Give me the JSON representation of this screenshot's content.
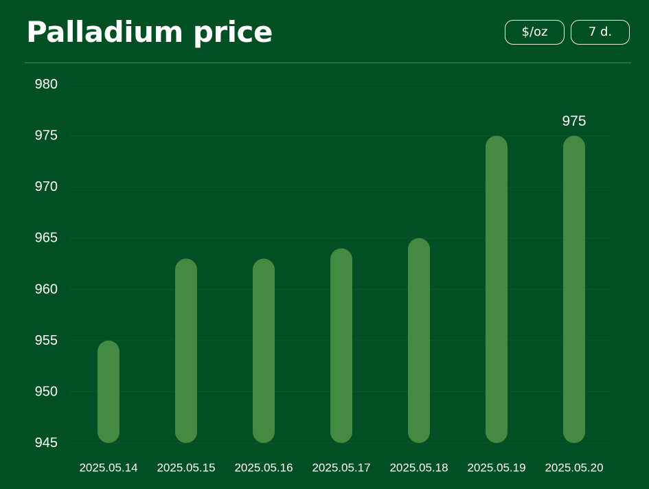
{
  "header": {
    "title": "Palladium price",
    "unit_label": "$/oz",
    "range_label": "7 d."
  },
  "colors": {
    "background": "#024f24",
    "bar": "#448a42",
    "gridline": "#0d5a2c",
    "text": "#ffffff"
  },
  "chart_data": {
    "type": "bar",
    "title": "Palladium price",
    "xlabel": "",
    "ylabel": "",
    "categories": [
      "2025.05.14",
      "2025.05.15",
      "2025.05.16",
      "2025.05.17",
      "2025.05.18",
      "2025.05.19",
      "2025.05.20"
    ],
    "values": [
      955,
      963,
      963,
      964,
      965,
      975,
      975
    ],
    "ylim": [
      945,
      980
    ],
    "yticks": [
      945,
      950,
      955,
      960,
      965,
      970,
      975,
      980
    ],
    "data_labels": [
      null,
      null,
      null,
      null,
      null,
      null,
      "975"
    ],
    "grid": true,
    "legend": "none"
  }
}
